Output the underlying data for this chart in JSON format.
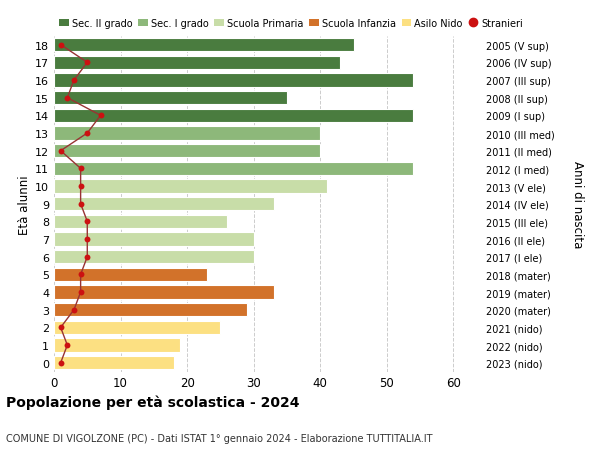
{
  "ages": [
    0,
    1,
    2,
    3,
    4,
    5,
    6,
    7,
    8,
    9,
    10,
    11,
    12,
    13,
    14,
    15,
    16,
    17,
    18
  ],
  "values": [
    18,
    19,
    25,
    29,
    33,
    23,
    30,
    30,
    26,
    33,
    41,
    54,
    40,
    40,
    54,
    35,
    54,
    43,
    45
  ],
  "stranieri": [
    1,
    2,
    1,
    3,
    4,
    4,
    5,
    5,
    5,
    4,
    4,
    4,
    1,
    5,
    7,
    2,
    3,
    5,
    1
  ],
  "colors": {
    "nido": "#fce082",
    "infanzia": "#d2722a",
    "primaria": "#c8dda8",
    "media": "#8db87a",
    "superiore": "#4a7c3f"
  },
  "bar_colors_by_age": [
    "nido",
    "nido",
    "nido",
    "infanzia",
    "infanzia",
    "infanzia",
    "primaria",
    "primaria",
    "primaria",
    "primaria",
    "primaria",
    "media",
    "media",
    "media",
    "superiore",
    "superiore",
    "superiore",
    "superiore",
    "superiore"
  ],
  "right_labels": [
    "2023 (nido)",
    "2022 (nido)",
    "2021 (nido)",
    "2020 (mater)",
    "2019 (mater)",
    "2018 (mater)",
    "2017 (I ele)",
    "2016 (II ele)",
    "2015 (III ele)",
    "2014 (IV ele)",
    "2013 (V ele)",
    "2012 (I med)",
    "2011 (II med)",
    "2010 (III med)",
    "2009 (I sup)",
    "2008 (II sup)",
    "2007 (III sup)",
    "2006 (IV sup)",
    "2005 (V sup)"
  ],
  "title": "Popolazione per età scolastica - 2024",
  "subtitle": "COMUNE DI VIGOLZONE (PC) - Dati ISTAT 1° gennaio 2024 - Elaborazione TUTTITALIA.IT",
  "ylabel_left": "Età alunni",
  "ylabel_right": "Anni di nascita",
  "xlim": [
    0,
    64
  ],
  "xticks": [
    0,
    10,
    20,
    30,
    40,
    50,
    60
  ],
  "legend_labels": [
    "Sec. II grado",
    "Sec. I grado",
    "Scuola Primaria",
    "Scuola Infanzia",
    "Asilo Nido",
    "Stranieri"
  ],
  "legend_colors": [
    "#4a7c3f",
    "#8db87a",
    "#c8dda8",
    "#d2722a",
    "#fce082",
    "#cc1111"
  ],
  "stranieri_dot_color": "#cc1111",
  "stranieri_line_color": "#993333",
  "grid_color": "#cccccc",
  "bg_color": "#ffffff"
}
